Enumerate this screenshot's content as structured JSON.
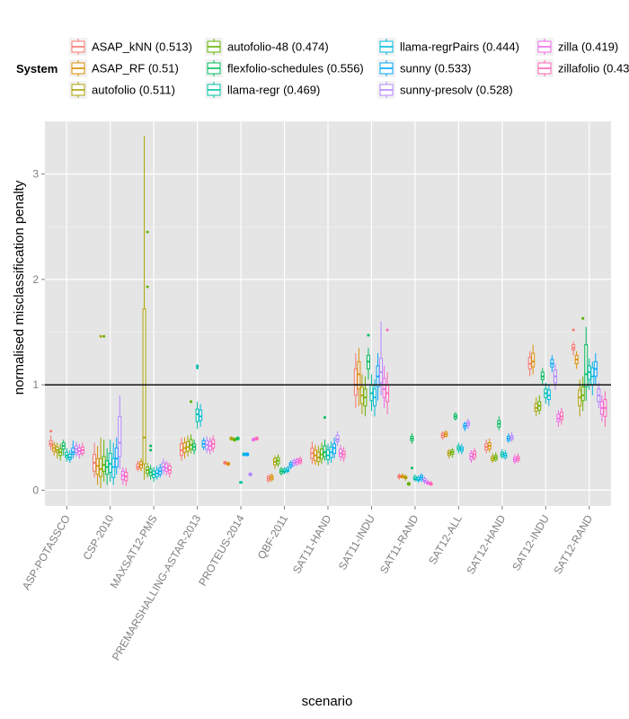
{
  "chart_data": {
    "type": "boxplot",
    "xlabel": "scenario",
    "ylabel": "normalised misclassification penalty",
    "ylim": [
      -0.15,
      3.5
    ],
    "yticks": [
      0,
      1,
      2,
      3
    ],
    "reference_line": 1,
    "grid": true,
    "legend_position": "top",
    "legend_title": "System",
    "series": [
      {
        "name": "ASAP_kNN (0.513)",
        "color": "#F8766D"
      },
      {
        "name": "ASAP_RF (0.51)",
        "color": "#DB8E00"
      },
      {
        "name": "autofolio (0.511)",
        "color": "#AEA200"
      },
      {
        "name": "autofolio-48 (0.474)",
        "color": "#64B200"
      },
      {
        "name": "flexfolio-schedules (0.556)",
        "color": "#00BD5C"
      },
      {
        "name": "llama-regr (0.469)",
        "color": "#00C1A7"
      },
      {
        "name": "llama-regrPairs (0.444)",
        "color": "#00BADE"
      },
      {
        "name": "sunny (0.533)",
        "color": "#00A6FF"
      },
      {
        "name": "sunny-presolv (0.528)",
        "color": "#B385FF"
      },
      {
        "name": "zilla (0.419)",
        "color": "#EF67EB"
      },
      {
        "name": "zillafolio (0.43",
        "color": "#FF63B6"
      }
    ],
    "categories": [
      "ASP-POTASSCO",
      "CSP-2010",
      "MAXSAT12-PMS",
      "PREMARSHALLING-ASTAR-2013",
      "PROTEUS-2014",
      "QBF-2011",
      "SAT11-HAND",
      "SAT11-INDU",
      "SAT11-RAND",
      "SAT12-ALL",
      "SAT12-HAND",
      "SAT12-INDU",
      "SAT12-RAND"
    ],
    "boxes": [
      [
        [
          0.38,
          0.42,
          0.44,
          0.47,
          0.52,
          [
            0.56
          ]
        ],
        [
          0.33,
          0.37,
          0.4,
          0.43,
          0.46,
          []
        ],
        [
          0.3,
          0.36,
          0.38,
          0.41,
          0.45,
          []
        ],
        [
          0.28,
          0.33,
          0.36,
          0.39,
          0.44,
          []
        ],
        [
          0.33,
          0.39,
          0.42,
          0.45,
          0.48,
          []
        ],
        [
          0.27,
          0.31,
          0.33,
          0.36,
          0.4,
          []
        ],
        [
          0.26,
          0.29,
          0.31,
          0.34,
          0.38,
          []
        ],
        [
          0.3,
          0.34,
          0.36,
          0.4,
          0.47,
          []
        ],
        [
          0.32,
          0.36,
          0.39,
          0.42,
          0.46,
          []
        ],
        [
          0.3,
          0.34,
          0.37,
          0.4,
          0.44,
          []
        ],
        [
          0.32,
          0.35,
          0.38,
          0.41,
          0.45,
          []
        ]
      ],
      [
        [
          0.12,
          0.18,
          0.26,
          0.34,
          0.45,
          []
        ],
        [
          0.05,
          0.15,
          0.23,
          0.3,
          0.42,
          []
        ],
        [
          0.02,
          0.13,
          0.2,
          0.3,
          0.5,
          [
            1.46
          ]
        ],
        [
          0.08,
          0.18,
          0.24,
          0.32,
          0.48,
          [
            1.46
          ]
        ],
        [
          0.05,
          0.15,
          0.22,
          0.28,
          0.4,
          []
        ],
        [
          0.08,
          0.17,
          0.25,
          0.35,
          0.48,
          []
        ],
        [
          0.05,
          0.12,
          0.22,
          0.3,
          0.45,
          []
        ],
        [
          0.15,
          0.22,
          0.3,
          0.4,
          0.5,
          []
        ],
        [
          0.2,
          0.32,
          0.45,
          0.7,
          0.9,
          []
        ],
        [
          0.05,
          0.1,
          0.14,
          0.18,
          0.22,
          []
        ],
        [
          0.04,
          0.09,
          0.13,
          0.17,
          0.21,
          []
        ]
      ],
      [
        [
          0.18,
          0.2,
          0.22,
          0.25,
          0.28,
          []
        ],
        [
          0.18,
          0.21,
          0.24,
          0.27,
          0.3,
          []
        ],
        [
          0.1,
          0.25,
          0.5,
          1.72,
          3.36,
          []
        ],
        [
          0.12,
          0.16,
          0.19,
          0.22,
          0.26,
          [
            2.45,
            1.93
          ]
        ],
        [
          0.1,
          0.14,
          0.17,
          0.2,
          0.24,
          [
            0.42,
            0.38
          ]
        ],
        [
          0.08,
          0.12,
          0.15,
          0.18,
          0.22,
          []
        ],
        [
          0.1,
          0.13,
          0.16,
          0.19,
          0.23,
          []
        ],
        [
          0.12,
          0.15,
          0.18,
          0.21,
          0.25,
          []
        ],
        [
          0.15,
          0.19,
          0.22,
          0.26,
          0.3,
          []
        ],
        [
          0.14,
          0.18,
          0.21,
          0.25,
          0.28,
          []
        ],
        [
          0.12,
          0.16,
          0.19,
          0.23,
          0.26,
          []
        ]
      ],
      [
        [
          0.28,
          0.33,
          0.38,
          0.44,
          0.5,
          []
        ],
        [
          0.3,
          0.36,
          0.4,
          0.45,
          0.5,
          []
        ],
        [
          0.32,
          0.37,
          0.41,
          0.46,
          0.52,
          []
        ],
        [
          0.35,
          0.39,
          0.43,
          0.48,
          0.53,
          [
            0.84,
            0.84
          ]
        ],
        [
          0.34,
          0.38,
          0.41,
          0.44,
          0.48,
          []
        ],
        [
          0.58,
          0.65,
          0.72,
          0.77,
          0.84,
          [
            1.18,
            1.16
          ]
        ],
        [
          0.6,
          0.66,
          0.7,
          0.76,
          0.82,
          []
        ],
        [
          0.38,
          0.41,
          0.44,
          0.47,
          0.5,
          []
        ],
        [
          0.35,
          0.39,
          0.43,
          0.47,
          0.51,
          []
        ],
        [
          0.34,
          0.38,
          0.42,
          0.46,
          0.5,
          []
        ],
        [
          0.36,
          0.4,
          0.44,
          0.48,
          0.52,
          []
        ]
      ],
      [
        [
          0.24,
          0.25,
          0.26,
          0.27,
          0.28,
          []
        ],
        [
          0.23,
          0.24,
          0.25,
          0.26,
          0.27,
          []
        ],
        [
          0.47,
          0.48,
          0.49,
          0.5,
          0.51,
          []
        ],
        [
          0.46,
          0.47,
          0.48,
          0.49,
          0.5,
          []
        ],
        [
          0.47,
          0.48,
          0.49,
          0.5,
          0.51,
          []
        ],
        [
          0.06,
          0.07,
          0.07,
          0.08,
          0.09,
          []
        ],
        [
          0.32,
          0.33,
          0.34,
          0.35,
          0.36,
          []
        ],
        [
          0.32,
          0.33,
          0.34,
          0.35,
          0.36,
          []
        ],
        [
          0.13,
          0.14,
          0.15,
          0.16,
          0.17,
          []
        ],
        [
          0.46,
          0.47,
          0.48,
          0.49,
          0.5,
          []
        ],
        [
          0.47,
          0.48,
          0.49,
          0.5,
          0.51,
          []
        ]
      ],
      [
        [
          0.07,
          0.09,
          0.11,
          0.13,
          0.15,
          []
        ],
        [
          0.08,
          0.1,
          0.12,
          0.14,
          0.16,
          []
        ],
        [
          0.2,
          0.24,
          0.27,
          0.3,
          0.33,
          []
        ],
        [
          0.22,
          0.25,
          0.28,
          0.31,
          0.34,
          []
        ],
        [
          0.14,
          0.16,
          0.18,
          0.2,
          0.22,
          []
        ],
        [
          0.15,
          0.17,
          0.18,
          0.2,
          0.22,
          []
        ],
        [
          0.16,
          0.18,
          0.19,
          0.21,
          0.23,
          []
        ],
        [
          0.2,
          0.22,
          0.24,
          0.26,
          0.28,
          []
        ],
        [
          0.22,
          0.24,
          0.26,
          0.28,
          0.3,
          []
        ],
        [
          0.23,
          0.25,
          0.27,
          0.29,
          0.31,
          []
        ],
        [
          0.24,
          0.26,
          0.28,
          0.3,
          0.32,
          []
        ]
      ],
      [
        [
          0.25,
          0.3,
          0.35,
          0.4,
          0.46,
          []
        ],
        [
          0.24,
          0.28,
          0.33,
          0.38,
          0.43,
          []
        ],
        [
          0.23,
          0.27,
          0.31,
          0.36,
          0.42,
          []
        ],
        [
          0.25,
          0.3,
          0.34,
          0.39,
          0.45,
          []
        ],
        [
          0.28,
          0.32,
          0.36,
          0.42,
          0.48,
          [
            0.69
          ]
        ],
        [
          0.24,
          0.29,
          0.33,
          0.38,
          0.44,
          []
        ],
        [
          0.26,
          0.31,
          0.36,
          0.41,
          0.46,
          []
        ],
        [
          0.3,
          0.35,
          0.4,
          0.44,
          0.5,
          []
        ],
        [
          0.42,
          0.46,
          0.48,
          0.52,
          0.56,
          []
        ],
        [
          0.28,
          0.32,
          0.35,
          0.39,
          0.43,
          []
        ],
        [
          0.27,
          0.31,
          0.34,
          0.37,
          0.41,
          []
        ]
      ],
      [
        [
          0.78,
          0.9,
          1.0,
          1.15,
          1.3,
          []
        ],
        [
          0.8,
          0.96,
          1.1,
          1.22,
          1.35,
          []
        ],
        [
          0.72,
          0.82,
          0.9,
          0.98,
          1.1,
          []
        ],
        [
          0.7,
          0.8,
          0.88,
          0.96,
          1.08,
          []
        ],
        [
          1.05,
          1.15,
          1.22,
          1.28,
          1.35,
          [
            1.47
          ]
        ],
        [
          0.75,
          0.85,
          0.92,
          1.0,
          1.1,
          []
        ],
        [
          0.7,
          0.8,
          0.88,
          0.96,
          1.05,
          []
        ],
        [
          0.85,
          0.98,
          1.08,
          1.18,
          1.3,
          []
        ],
        [
          0.9,
          1.02,
          1.12,
          1.25,
          1.6,
          []
        ],
        [
          0.78,
          0.88,
          0.96,
          1.06,
          1.18,
          []
        ],
        [
          0.72,
          0.84,
          0.92,
          1.0,
          1.12,
          [
            1.52
          ]
        ]
      ],
      [
        [
          0.1,
          0.12,
          0.13,
          0.14,
          0.16,
          []
        ],
        [
          0.11,
          0.12,
          0.13,
          0.14,
          0.16,
          []
        ],
        [
          0.09,
          0.11,
          0.12,
          0.13,
          0.15,
          []
        ],
        [
          0.04,
          0.05,
          0.06,
          0.07,
          0.08,
          []
        ],
        [
          0.44,
          0.47,
          0.49,
          0.51,
          0.54,
          [
            0.21
          ]
        ],
        [
          0.08,
          0.1,
          0.11,
          0.13,
          0.15,
          []
        ],
        [
          0.07,
          0.09,
          0.1,
          0.12,
          0.14,
          []
        ],
        [
          0.08,
          0.1,
          0.12,
          0.14,
          0.16,
          []
        ],
        [
          0.06,
          0.08,
          0.09,
          0.11,
          0.13,
          []
        ],
        [
          0.05,
          0.06,
          0.07,
          0.08,
          0.1,
          []
        ],
        [
          0.04,
          0.05,
          0.06,
          0.07,
          0.09,
          []
        ]
      ],
      [
        [
          0.48,
          0.5,
          0.52,
          0.54,
          0.56,
          []
        ],
        [
          0.5,
          0.51,
          0.53,
          0.55,
          0.57,
          []
        ],
        [
          0.3,
          0.33,
          0.35,
          0.37,
          0.39,
          []
        ],
        [
          0.31,
          0.34,
          0.36,
          0.38,
          0.4,
          []
        ],
        [
          0.66,
          0.68,
          0.7,
          0.72,
          0.74,
          []
        ],
        [
          0.35,
          0.38,
          0.4,
          0.42,
          0.45,
          []
        ],
        [
          0.34,
          0.37,
          0.39,
          0.41,
          0.44,
          []
        ],
        [
          0.56,
          0.59,
          0.61,
          0.63,
          0.65,
          []
        ],
        [
          0.58,
          0.61,
          0.63,
          0.65,
          0.68,
          []
        ],
        [
          0.26,
          0.29,
          0.32,
          0.35,
          0.38,
          []
        ],
        [
          0.28,
          0.31,
          0.34,
          0.37,
          0.4,
          []
        ]
      ],
      [
        [
          0.35,
          0.38,
          0.41,
          0.44,
          0.48,
          []
        ],
        [
          0.36,
          0.39,
          0.42,
          0.45,
          0.49,
          []
        ],
        [
          0.26,
          0.28,
          0.3,
          0.32,
          0.35,
          []
        ],
        [
          0.27,
          0.29,
          0.31,
          0.33,
          0.36,
          []
        ],
        [
          0.57,
          0.6,
          0.63,
          0.66,
          0.7,
          []
        ],
        [
          0.3,
          0.32,
          0.34,
          0.36,
          0.39,
          []
        ],
        [
          0.29,
          0.31,
          0.33,
          0.35,
          0.38,
          []
        ],
        [
          0.45,
          0.47,
          0.49,
          0.51,
          0.54,
          []
        ],
        [
          0.46,
          0.48,
          0.5,
          0.52,
          0.55,
          []
        ],
        [
          0.25,
          0.27,
          0.29,
          0.31,
          0.34,
          []
        ],
        [
          0.26,
          0.28,
          0.3,
          0.32,
          0.35,
          []
        ]
      ],
      [
        [
          1.08,
          1.15,
          1.2,
          1.26,
          1.32,
          []
        ],
        [
          1.1,
          1.17,
          1.22,
          1.3,
          1.38,
          []
        ],
        [
          0.7,
          0.75,
          0.78,
          0.82,
          0.88,
          []
        ],
        [
          0.72,
          0.76,
          0.8,
          0.84,
          0.9,
          []
        ],
        [
          1.0,
          1.05,
          1.08,
          1.12,
          1.16,
          []
        ],
        [
          0.82,
          0.88,
          0.92,
          0.96,
          1.02,
          []
        ],
        [
          0.8,
          0.86,
          0.9,
          0.95,
          1.0,
          []
        ],
        [
          1.12,
          1.17,
          1.2,
          1.24,
          1.28,
          []
        ],
        [
          0.95,
          1.02,
          1.08,
          1.14,
          1.2,
          []
        ],
        [
          0.6,
          0.65,
          0.68,
          0.72,
          0.76,
          []
        ],
        [
          0.62,
          0.67,
          0.7,
          0.74,
          0.78,
          []
        ]
      ],
      [
        [
          1.28,
          1.33,
          1.35,
          1.38,
          1.41,
          [
            1.52
          ]
        ],
        [
          1.15,
          1.2,
          1.24,
          1.28,
          1.32,
          []
        ],
        [
          0.7,
          0.8,
          0.88,
          0.95,
          1.05,
          []
        ],
        [
          0.75,
          0.85,
          0.9,
          0.98,
          1.08,
          [
            1.63,
            1.63
          ]
        ],
        [
          0.85,
          0.98,
          1.1,
          1.38,
          1.55,
          []
        ],
        [
          0.95,
          1.05,
          1.12,
          1.18,
          1.25,
          []
        ],
        [
          0.9,
          1.0,
          1.08,
          1.16,
          1.22,
          []
        ],
        [
          1.0,
          1.08,
          1.15,
          1.22,
          1.3,
          []
        ],
        [
          0.78,
          0.84,
          0.9,
          0.96,
          1.02,
          []
        ],
        [
          0.65,
          0.72,
          0.78,
          0.84,
          0.9,
          []
        ],
        [
          0.6,
          0.7,
          0.78,
          0.86,
          0.94,
          []
        ]
      ]
    ]
  }
}
